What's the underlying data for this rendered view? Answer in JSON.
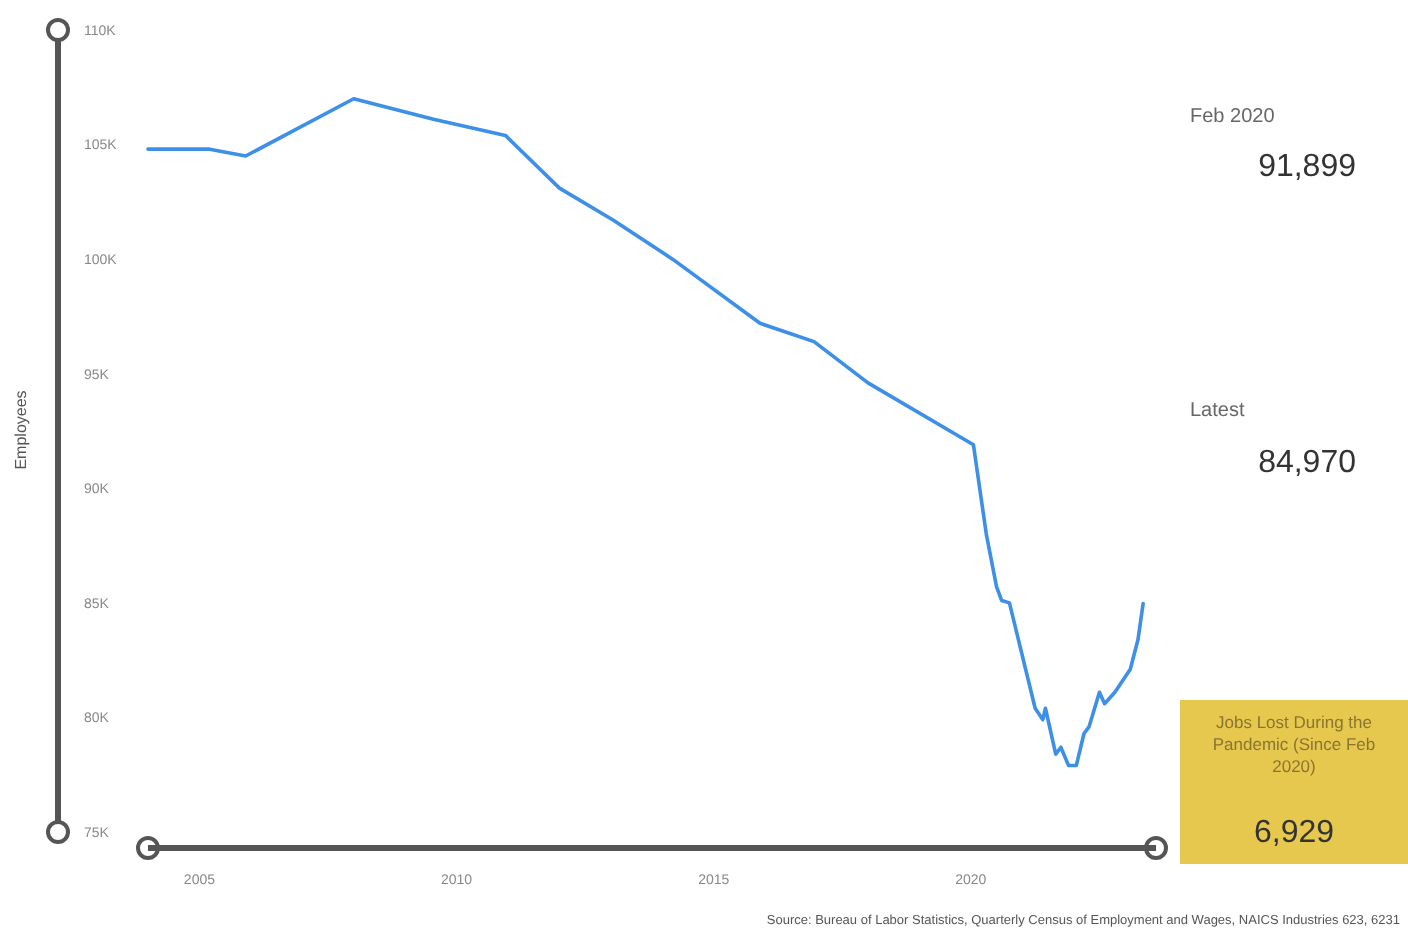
{
  "chart_data": {
    "type": "line",
    "ylabel": "Employees",
    "x": [
      2004.0,
      2005.2,
      2005.9,
      2008.0,
      2009.55,
      2010.95,
      2012.0,
      2013.05,
      2014.2,
      2015.9,
      2016.95,
      2018.0,
      2020.05,
      2020.3,
      2020.5,
      2020.6,
      2020.75,
      2021.25,
      2021.4,
      2021.45,
      2021.65,
      2021.75,
      2021.9,
      2022.05,
      2022.2,
      2022.3,
      2022.5,
      2022.6,
      2022.8,
      2023.1,
      2023.25,
      2023.35
    ],
    "series": [
      {
        "color": "#3d8fe8",
        "values": [
          104800,
          104800,
          104500,
          107000,
          106100,
          105400,
          103100,
          101700,
          100000,
          97200,
          96400,
          94600,
          91900,
          88000,
          85700,
          85100,
          85000,
          80400,
          79900,
          80400,
          78400,
          78700,
          77900,
          77900,
          79300,
          79600,
          81100,
          80600,
          81100,
          82100,
          83400,
          84970
        ]
      }
    ],
    "xlim": [
      2004,
      2023.6
    ],
    "xticks": [
      2005,
      2010,
      2015,
      2020
    ],
    "ylim": [
      75000,
      110000
    ],
    "yticks": [
      {
        "value": 75000,
        "label": "75K"
      },
      {
        "value": 80000,
        "label": "80K"
      },
      {
        "value": 85000,
        "label": "85K"
      },
      {
        "value": 90000,
        "label": "90K"
      },
      {
        "value": 95000,
        "label": "95K"
      },
      {
        "value": 100000,
        "label": "100K"
      },
      {
        "value": 105000,
        "label": "105K"
      },
      {
        "value": 110000,
        "label": "110K"
      }
    ],
    "grid": false,
    "line_style": "solid",
    "marker": "none",
    "annotations": [
      "Feb 2020",
      "91,899",
      "Latest",
      "84,970",
      "Jobs Lost During the Pandemic (Since Feb 2020)",
      "6,929",
      "Source: Bureau of Labor Statistics, Quarterly Census of Employment and Wages, NAICS Industries 623, 6231"
    ]
  }
}
